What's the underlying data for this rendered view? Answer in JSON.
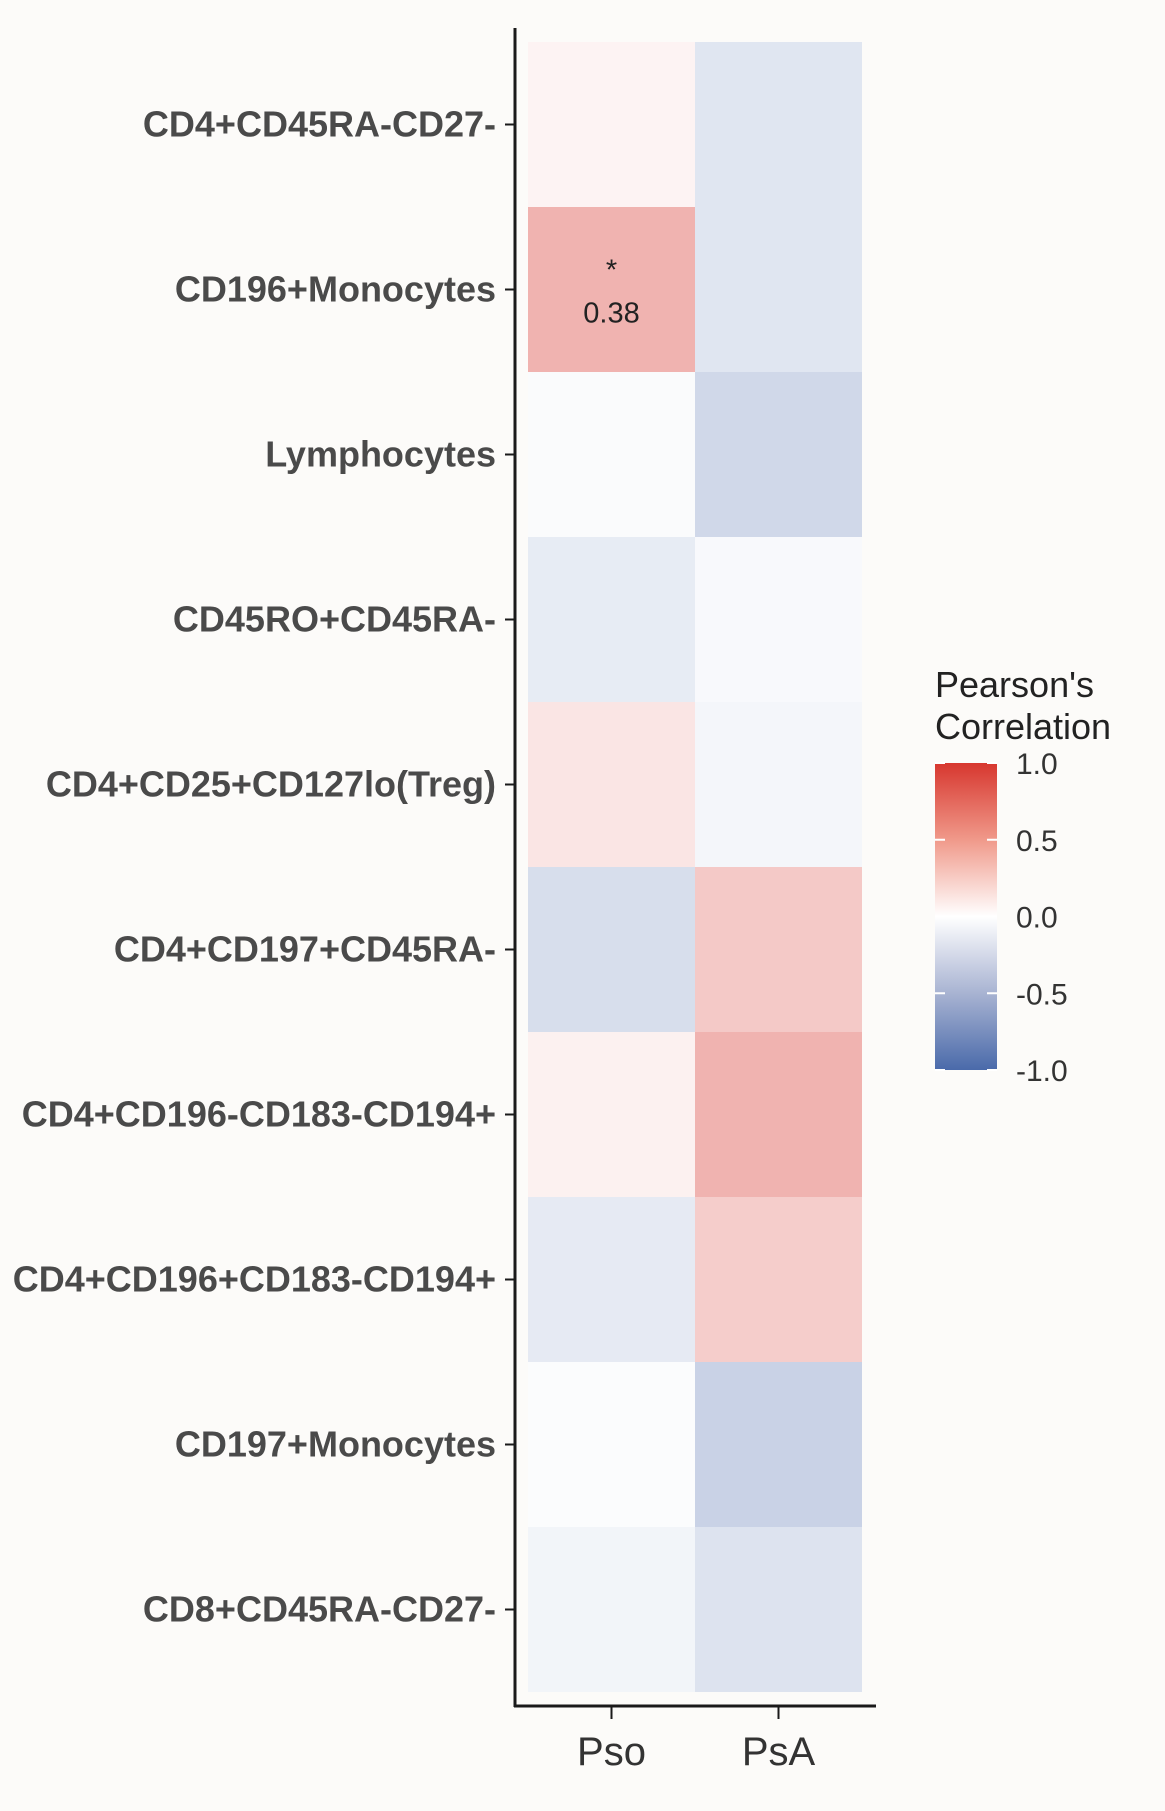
{
  "chart_data": {
    "type": "heatmap",
    "title": "",
    "xlabel": "",
    "ylabel": "",
    "x_categories": [
      "Pso",
      "PsA"
    ],
    "y_categories": [
      "CD4+CD45RA-CD27-",
      "CD196+Monocytes",
      "Lymphocytes",
      "CD45RO+CD45RA-",
      "CD4+CD25+CD127lo(Treg)",
      "CD4+CD197+CD45RA-",
      "CD4+CD196-CD183-CD194+",
      "CD4+CD196+CD183-CD194+",
      "CD197+Monocytes",
      "CD8+CD45RA-CD27-"
    ],
    "values": [
      [
        0.06,
        -0.17
      ],
      [
        0.38,
        -0.17
      ],
      [
        -0.03,
        -0.26
      ],
      [
        -0.13,
        -0.04
      ],
      [
        0.13,
        -0.06
      ],
      [
        -0.22,
        0.27
      ],
      [
        0.07,
        0.38
      ],
      [
        -0.14,
        0.25
      ],
      [
        -0.02,
        -0.3
      ],
      [
        -0.07,
        -0.19
      ]
    ],
    "annotations": [
      {
        "row": 1,
        "col": 0,
        "mark": "*",
        "label": "0.38"
      }
    ],
    "legend": {
      "title_lines": [
        "Pearson's",
        "Correlation"
      ],
      "ticks": [
        "1.0",
        "0.5",
        "0.0",
        "-0.5",
        "-1.0"
      ],
      "range": [
        -1.0,
        1.0
      ],
      "placement": "right",
      "colors": {
        "low": "#4a6aaa",
        "mid": "#ffffff",
        "high": "#d7372f"
      }
    }
  }
}
